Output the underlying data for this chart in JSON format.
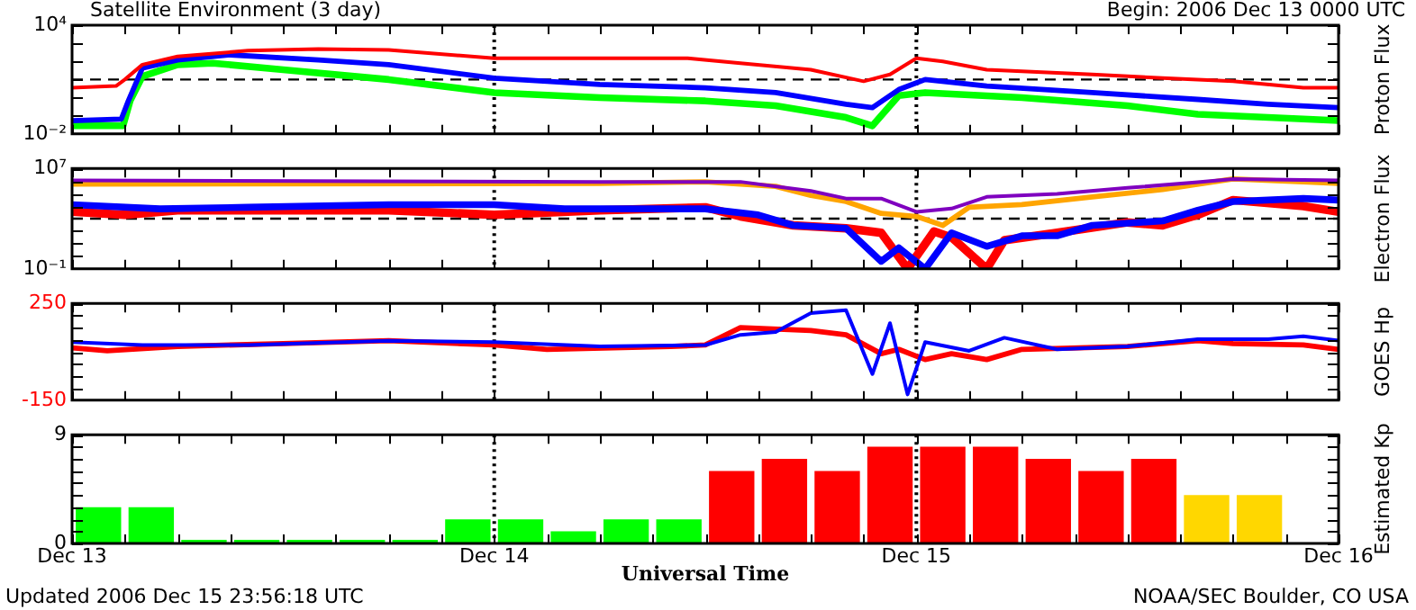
{
  "chart_data": [
    {
      "type": "line",
      "title": "Satellite Environment (3 day)",
      "subtitle": "Begin:  2006 Dec 13 0000 UTC",
      "ylabel": "Proton Flux",
      "log": "y",
      "grid": false,
      "legend": false,
      "tick_labels": "y",
      "marker": "none",
      "xlim": [
        "2006-12-13T00:00",
        "2006-12-16T00:00"
      ],
      "xticks": [
        {
          "value": "2006-12-13T00:00",
          "label": null
        },
        {
          "value": "2006-12-13T03:00",
          "label": null
        },
        {
          "value": "2006-12-13T06:00",
          "label": null
        },
        {
          "value": "2006-12-13T09:00",
          "label": null
        },
        {
          "value": "2006-12-13T12:00",
          "label": null
        },
        {
          "value": "2006-12-13T15:00",
          "label": null
        },
        {
          "value": "2006-12-13T18:00",
          "label": null
        },
        {
          "value": "2006-12-13T21:00",
          "label": null
        },
        {
          "value": "2006-12-14T00:00",
          "label": null
        },
        {
          "value": "2006-12-14T03:00",
          "label": null
        },
        {
          "value": "2006-12-14T06:00",
          "label": null
        },
        {
          "value": "2006-12-14T09:00",
          "label": null
        },
        {
          "value": "2006-12-14T12:00",
          "label": null
        },
        {
          "value": "2006-12-14T15:00",
          "label": null
        },
        {
          "value": "2006-12-14T18:00",
          "label": null
        },
        {
          "value": "2006-12-14T21:00",
          "label": null
        },
        {
          "value": "2006-12-15T00:00",
          "label": null
        },
        {
          "value": "2006-12-15T03:00",
          "label": null
        },
        {
          "value": "2006-12-15T06:00",
          "label": null
        },
        {
          "value": "2006-12-15T09:00",
          "label": null
        },
        {
          "value": "2006-12-15T12:00",
          "label": null
        },
        {
          "value": "2006-12-15T15:00",
          "label": null
        },
        {
          "value": "2006-12-15T18:00",
          "label": null
        },
        {
          "value": "2006-12-15T21:00",
          "label": null
        },
        {
          "value": "2006-12-16T00:00",
          "label": null
        }
      ],
      "ylim": [
        0.01,
        10000
      ],
      "yticks": [
        {
          "value": 0.01,
          "label": "10⁻²"
        },
        {
          "value": 0.1,
          "label": null
        },
        {
          "value": 1,
          "label": null
        },
        {
          "value": 10,
          "label": null
        },
        {
          "value": 100,
          "label": null
        },
        {
          "value": 1000,
          "label": null
        },
        {
          "value": 10000,
          "label": "10⁴"
        }
      ],
      "ref_lines": [
        {
          "axis": "y",
          "value": 10,
          "line_style": "dashed",
          "color": "#000000"
        },
        {
          "axis": "x",
          "value": "2006-12-14T00:00",
          "line_style": "dotted",
          "color": "#000000"
        },
        {
          "axis": "x",
          "value": "2006-12-15T00:00",
          "line_style": "dotted",
          "color": "#000000"
        }
      ],
      "series": [
        {
          "color": "#ff0000",
          "x": [
            "2006-12-13T00:00",
            "2006-12-13T02:30",
            "2006-12-13T03:00",
            "2006-12-13T04:00",
            "2006-12-13T06:00",
            "2006-12-13T10:00",
            "2006-12-13T14:00",
            "2006-12-13T18:00",
            "2006-12-14T00:00",
            "2006-12-14T06:00",
            "2006-12-14T11:00",
            "2006-12-14T14:00",
            "2006-12-14T18:00",
            "2006-12-14T21:00",
            "2006-12-14T22:30",
            "2006-12-15T00:00",
            "2006-12-15T01:30",
            "2006-12-15T04:00",
            "2006-12-15T10:00",
            "2006-12-15T14:00",
            "2006-12-15T18:00",
            "2006-12-15T22:00",
            "2006-12-16T00:00"
          ],
          "values": [
            3.5,
            4.4,
            10,
            66,
            190,
            390,
            480,
            430,
            150,
            150,
            150,
            80,
            35,
            8,
            19,
            150,
            100,
            35,
            19,
            12,
            8,
            3.5,
            3.5
          ]
        },
        {
          "color": "#0000ff",
          "x": [
            "2006-12-13T00:00",
            "2006-12-13T02:48",
            "2006-12-13T03:12",
            "2006-12-13T04:00",
            "2006-12-13T06:00",
            "2006-12-13T09:00",
            "2006-12-13T14:00",
            "2006-12-13T18:00",
            "2006-12-14T00:00",
            "2006-12-14T06:00",
            "2006-12-14T12:00",
            "2006-12-14T16:00",
            "2006-12-14T20:00",
            "2006-12-14T21:30",
            "2006-12-14T23:00",
            "2006-12-15T00:30",
            "2006-12-15T04:00",
            "2006-12-15T10:00",
            "2006-12-15T16:00",
            "2006-12-15T20:00",
            "2006-12-16T00:00"
          ],
          "values": [
            0.054,
            0.066,
            0.66,
            43,
            120,
            230,
            120,
            66,
            12,
            5.4,
            3.5,
            1.9,
            0.43,
            0.28,
            2.8,
            10,
            4.4,
            1.9,
            0.8,
            0.43,
            0.28
          ]
        },
        {
          "color": "#00ff00",
          "x": [
            "2006-12-13T00:00",
            "2006-12-13T02:54",
            "2006-12-13T03:18",
            "2006-12-13T04:00",
            "2006-12-13T06:00",
            "2006-12-13T08:00",
            "2006-12-13T12:00",
            "2006-12-13T18:00",
            "2006-12-14T00:00",
            "2006-12-14T06:00",
            "2006-12-14T12:00",
            "2006-12-14T16:00",
            "2006-12-14T20:00",
            "2006-12-14T21:30",
            "2006-12-14T23:00",
            "2006-12-15T00:30",
            "2006-12-15T06:00",
            "2006-12-15T12:00",
            "2006-12-15T16:00",
            "2006-12-16T00:00"
          ],
          "values": [
            0.028,
            0.028,
            0.66,
            15,
            66,
            80,
            35,
            10,
            1.9,
            1,
            0.66,
            0.36,
            0.08,
            0.028,
            1.3,
            1.9,
            1,
            0.36,
            0.12,
            0.054
          ]
        }
      ]
    },
    {
      "type": "line",
      "ylabel": "Electron Flux",
      "log": "y",
      "grid": false,
      "legend": false,
      "tick_labels": "y",
      "marker": "none",
      "xlim": [
        "2006-12-13T00:00",
        "2006-12-16T00:00"
      ],
      "xticks": [
        {
          "value": "2006-12-13T00:00",
          "label": null
        },
        {
          "value": "2006-12-13T03:00",
          "label": null
        },
        {
          "value": "2006-12-13T06:00",
          "label": null
        },
        {
          "value": "2006-12-13T09:00",
          "label": null
        },
        {
          "value": "2006-12-13T12:00",
          "label": null
        },
        {
          "value": "2006-12-13T15:00",
          "label": null
        },
        {
          "value": "2006-12-13T18:00",
          "label": null
        },
        {
          "value": "2006-12-13T21:00",
          "label": null
        },
        {
          "value": "2006-12-14T00:00",
          "label": null
        },
        {
          "value": "2006-12-14T03:00",
          "label": null
        },
        {
          "value": "2006-12-14T06:00",
          "label": null
        },
        {
          "value": "2006-12-14T09:00",
          "label": null
        },
        {
          "value": "2006-12-14T12:00",
          "label": null
        },
        {
          "value": "2006-12-14T15:00",
          "label": null
        },
        {
          "value": "2006-12-14T18:00",
          "label": null
        },
        {
          "value": "2006-12-14T21:00",
          "label": null
        },
        {
          "value": "2006-12-15T00:00",
          "label": null
        },
        {
          "value": "2006-12-15T03:00",
          "label": null
        },
        {
          "value": "2006-12-15T06:00",
          "label": null
        },
        {
          "value": "2006-12-15T09:00",
          "label": null
        },
        {
          "value": "2006-12-15T12:00",
          "label": null
        },
        {
          "value": "2006-12-15T15:00",
          "label": null
        },
        {
          "value": "2006-12-15T18:00",
          "label": null
        },
        {
          "value": "2006-12-15T21:00",
          "label": null
        },
        {
          "value": "2006-12-16T00:00",
          "label": null
        }
      ],
      "ylim": [
        0.1,
        10000000
      ],
      "yticks": [
        {
          "value": 0.1,
          "label": "10⁻¹"
        },
        {
          "value": 1,
          "label": null
        },
        {
          "value": 10,
          "label": null
        },
        {
          "value": 100,
          "label": null
        },
        {
          "value": 1000,
          "label": null
        },
        {
          "value": 10000,
          "label": null
        },
        {
          "value": 100000,
          "label": null
        },
        {
          "value": 1000000,
          "label": null
        },
        {
          "value": 10000000,
          "label": "10⁷"
        }
      ],
      "ref_lines": [
        {
          "axis": "y",
          "value": 1000,
          "line_style": "dashed",
          "color": "#000000"
        },
        {
          "axis": "x",
          "value": "2006-12-14T00:00",
          "line_style": "dotted",
          "color": "#000000"
        },
        {
          "axis": "x",
          "value": "2006-12-15T00:00",
          "line_style": "dotted",
          "color": "#000000"
        }
      ],
      "series": [
        {
          "color": "#7f00bf",
          "x": [
            "2006-12-13T00:00",
            "2006-12-14T06:00",
            "2006-12-14T14:00",
            "2006-12-14T18:00",
            "2006-12-14T20:00",
            "2006-12-14T22:00",
            "2006-12-15T00:00",
            "2006-12-15T02:00",
            "2006-12-15T04:00",
            "2006-12-15T08:00",
            "2006-12-15T12:00",
            "2006-12-15T16:00",
            "2006-12-15T18:00",
            "2006-12-16T00:00"
          ],
          "values": [
            1100000,
            850000,
            850000,
            160000,
            40000,
            40000,
            3500,
            6300,
            54000,
            93000,
            280000,
            800000,
            1450000,
            1100000
          ]
        },
        {
          "color": "#ffa500",
          "x": [
            "2006-12-13T00:00",
            "2006-12-14T06:00",
            "2006-12-14T12:00",
            "2006-12-14T16:00",
            "2006-12-14T18:00",
            "2006-12-14T20:00",
            "2006-12-14T22:00",
            "2006-12-15T00:00",
            "2006-12-15T01:30",
            "2006-12-15T03:00",
            "2006-12-15T06:00",
            "2006-12-15T10:00",
            "2006-12-15T14:00",
            "2006-12-15T18:00",
            "2006-12-15T22:00",
            "2006-12-16T00:00"
          ],
          "values": [
            560000,
            630000,
            850000,
            370000,
            70000,
            23000,
            2600,
            1500,
            290,
            8000,
            13000,
            54000,
            210000,
            1450000,
            850000,
            630000
          ]
        },
        {
          "color": "#0000ff",
          "x": [
            "2006-12-13T00:00",
            "2006-12-13T05:00",
            "2006-12-13T10:00",
            "2006-12-13T18:00",
            "2006-12-14T00:00",
            "2006-12-14T04:00",
            "2006-12-14T12:00",
            "2006-12-14T15:00",
            "2006-12-14T17:00",
            "2006-12-14T20:00",
            "2006-12-14T22:00",
            "2006-12-14T23:00",
            "2006-12-15T00:30",
            "2006-12-15T02:00",
            "2006-12-15T04:00",
            "2006-12-15T06:00",
            "2006-12-15T08:00",
            "2006-12-15T10:00",
            "2006-12-15T14:00",
            "2006-12-15T16:00",
            "2006-12-15T18:00",
            "2006-12-15T22:00",
            "2006-12-16T00:00"
          ],
          "values": [
            13000,
            6000,
            8000,
            13000,
            13000,
            6000,
            6000,
            2000,
            290,
            170,
            0.4,
            4.7,
            0.1,
            74,
            6.2,
            43,
            43,
            290,
            660,
            4600,
            23000,
            40000,
            30000
          ]
        },
        {
          "color": "#ff0000",
          "x": [
            "2006-12-13T00:00",
            "2006-12-13T03:00",
            "2006-12-13T06:00",
            "2006-12-13T18:00",
            "2006-12-14T00:00",
            "2006-12-14T06:00",
            "2006-12-14T12:00",
            "2006-12-14T14:00",
            "2006-12-14T17:00",
            "2006-12-14T20:00",
            "2006-12-14T22:00",
            "2006-12-14T23:30",
            "2006-12-15T01:00",
            "2006-12-15T02:00",
            "2006-12-15T04:00",
            "2006-12-15T05:00",
            "2006-12-15T08:00",
            "2006-12-15T12:00",
            "2006-12-15T14:00",
            "2006-12-15T16:00",
            "2006-12-15T18:00",
            "2006-12-15T22:00",
            "2006-12-16T00:00"
          ],
          "values": [
            3500,
            2000,
            4600,
            4600,
            2000,
            4600,
            8000,
            1500,
            290,
            170,
            74,
            0.1,
            95,
            32,
            0.1,
            19,
            74,
            500,
            290,
            2000,
            30000,
            10000,
            3500
          ]
        }
      ]
    },
    {
      "type": "line",
      "ylabel": "GOES Hp",
      "grid": false,
      "legend": false,
      "tick_labels": "y",
      "marker": "none",
      "xlim": [
        "2006-12-13T00:00",
        "2006-12-16T00:00"
      ],
      "xticks": [
        {
          "value": "2006-12-13T00:00",
          "label": null
        },
        {
          "value": "2006-12-13T03:00",
          "label": null
        },
        {
          "value": "2006-12-13T06:00",
          "label": null
        },
        {
          "value": "2006-12-13T09:00",
          "label": null
        },
        {
          "value": "2006-12-13T12:00",
          "label": null
        },
        {
          "value": "2006-12-13T15:00",
          "label": null
        },
        {
          "value": "2006-12-13T18:00",
          "label": null
        },
        {
          "value": "2006-12-13T21:00",
          "label": null
        },
        {
          "value": "2006-12-14T00:00",
          "label": null
        },
        {
          "value": "2006-12-14T03:00",
          "label": null
        },
        {
          "value": "2006-12-14T06:00",
          "label": null
        },
        {
          "value": "2006-12-14T09:00",
          "label": null
        },
        {
          "value": "2006-12-14T12:00",
          "label": null
        },
        {
          "value": "2006-12-14T15:00",
          "label": null
        },
        {
          "value": "2006-12-14T18:00",
          "label": null
        },
        {
          "value": "2006-12-14T21:00",
          "label": null
        },
        {
          "value": "2006-12-15T00:00",
          "label": null
        },
        {
          "value": "2006-12-15T03:00",
          "label": null
        },
        {
          "value": "2006-12-15T06:00",
          "label": null
        },
        {
          "value": "2006-12-15T09:00",
          "label": null
        },
        {
          "value": "2006-12-15T12:00",
          "label": null
        },
        {
          "value": "2006-12-15T15:00",
          "label": null
        },
        {
          "value": "2006-12-15T18:00",
          "label": null
        },
        {
          "value": "2006-12-15T21:00",
          "label": null
        },
        {
          "value": "2006-12-16T00:00",
          "label": null
        }
      ],
      "ylim": [
        -150,
        250
      ],
      "yticks": [
        -150,
        {
          "value": -100,
          "label": null
        },
        {
          "value": -50,
          "label": null
        },
        {
          "value": 0,
          "label": null
        },
        {
          "value": 50,
          "label": null
        },
        {
          "value": 100,
          "label": null
        },
        {
          "value": 150,
          "label": null
        },
        {
          "value": 200,
          "label": null
        },
        250
      ],
      "ref_lines": [
        {
          "axis": "x",
          "value": "2006-12-14T00:00",
          "line_style": "dotted",
          "color": "#000000"
        },
        {
          "axis": "x",
          "value": "2006-12-15T00:00",
          "line_style": "dotted",
          "color": "#000000"
        }
      ],
      "series": [
        {
          "color": "#0000ff",
          "x": [
            "2006-12-13T00:00",
            "2006-12-13T04:00",
            "2006-12-13T10:00",
            "2006-12-13T18:00",
            "2006-12-14T00:00",
            "2006-12-14T06:00",
            "2006-12-14T12:00",
            "2006-12-14T14:00",
            "2006-12-14T16:00",
            "2006-12-14T18:00",
            "2006-12-14T20:00",
            "2006-12-14T21:30",
            "2006-12-14T22:30",
            "2006-12-14T23:30",
            "2006-12-15T00:30",
            "2006-12-15T03:00",
            "2006-12-15T05:00",
            "2006-12-15T08:00",
            "2006-12-15T12:00",
            "2006-12-15T16:00",
            "2006-12-15T20:00",
            "2006-12-15T22:00",
            "2006-12-16T00:00"
          ],
          "values": [
            90,
            78,
            78,
            96,
            90,
            72,
            78,
            120,
            132,
            210,
            222,
            -42,
            168,
            -126,
            90,
            54,
            108,
            60,
            72,
            102,
            102,
            114,
            96
          ]
        },
        {
          "color": "#ff0000",
          "x": [
            "2006-12-13T00:00",
            "2006-12-13T02:00",
            "2006-12-13T06:00",
            "2006-12-13T12:00",
            "2006-12-13T18:00",
            "2006-12-14T00:00",
            "2006-12-14T03:00",
            "2006-12-14T10:00",
            "2006-12-14T12:00",
            "2006-12-14T14:00",
            "2006-12-14T18:00",
            "2006-12-14T20:00",
            "2006-12-14T22:00",
            "2006-12-14T23:00",
            "2006-12-15T00:30",
            "2006-12-15T02:00",
            "2006-12-15T04:00",
            "2006-12-15T06:00",
            "2006-12-15T12:00",
            "2006-12-15T16:00",
            "2006-12-15T18:00",
            "2006-12-15T22:00",
            "2006-12-16T00:00"
          ],
          "values": [
            66,
            54,
            72,
            84,
            96,
            78,
            60,
            72,
            78,
            150,
            138,
            120,
            42,
            60,
            18,
            42,
            18,
            60,
            72,
            96,
            84,
            78,
            60
          ]
        }
      ]
    },
    {
      "type": "bar",
      "xlabel": "Universal Time",
      "ylabel": "Estimated Kp",
      "grid": false,
      "legend": false,
      "annotations": [
        "Updated 2006 Dec 15 23:56:18 UTC",
        "NOAA/SEC Boulder, CO USA"
      ],
      "xlim": [
        "2006-12-13T00:00",
        "2006-12-16T00:00"
      ],
      "xticks": [
        {
          "value": "2006-12-13T00:00",
          "label": "Dec 13"
        },
        {
          "value": "2006-12-13T03:00",
          "label": null
        },
        {
          "value": "2006-12-13T06:00",
          "label": null
        },
        {
          "value": "2006-12-13T09:00",
          "label": null
        },
        {
          "value": "2006-12-13T12:00",
          "label": null
        },
        {
          "value": "2006-12-13T15:00",
          "label": null
        },
        {
          "value": "2006-12-13T18:00",
          "label": null
        },
        {
          "value": "2006-12-13T21:00",
          "label": null
        },
        {
          "value": "2006-12-14T00:00",
          "label": "Dec 14"
        },
        {
          "value": "2006-12-14T03:00",
          "label": null
        },
        {
          "value": "2006-12-14T06:00",
          "label": null
        },
        {
          "value": "2006-12-14T09:00",
          "label": null
        },
        {
          "value": "2006-12-14T12:00",
          "label": null
        },
        {
          "value": "2006-12-14T15:00",
          "label": null
        },
        {
          "value": "2006-12-14T18:00",
          "label": null
        },
        {
          "value": "2006-12-14T21:00",
          "label": null
        },
        {
          "value": "2006-12-15T00:00",
          "label": "Dec 15"
        },
        {
          "value": "2006-12-15T03:00",
          "label": null
        },
        {
          "value": "2006-12-15T06:00",
          "label": null
        },
        {
          "value": "2006-12-15T09:00",
          "label": null
        },
        {
          "value": "2006-12-15T12:00",
          "label": null
        },
        {
          "value": "2006-12-15T15:00",
          "label": null
        },
        {
          "value": "2006-12-15T18:00",
          "label": null
        },
        {
          "value": "2006-12-15T21:00",
          "label": null
        },
        {
          "value": "2006-12-16T00:00",
          "label": "Dec 16"
        }
      ],
      "ylim": [
        0,
        9
      ],
      "yticks": [
        0,
        {
          "value": 1,
          "label": null
        },
        {
          "value": 2,
          "label": null
        },
        {
          "value": 3,
          "label": null
        },
        {
          "value": 4,
          "label": null
        },
        {
          "value": 5,
          "label": null
        },
        {
          "value": 6,
          "label": null
        },
        {
          "value": 7,
          "label": null
        },
        {
          "value": 8,
          "label": null
        },
        9
      ],
      "ref_lines": [
        {
          "axis": "x",
          "value": "2006-12-14T00:00",
          "line_style": "dotted",
          "color": "#000000"
        },
        {
          "axis": "x",
          "value": "2006-12-15T00:00",
          "line_style": "dotted",
          "color": "#000000"
        }
      ],
      "x": [
        "2006-12-13T01:30",
        "2006-12-13T04:30",
        "2006-12-13T07:30",
        "2006-12-13T10:30",
        "2006-12-13T13:30",
        "2006-12-13T16:30",
        "2006-12-13T19:30",
        "2006-12-13T22:30",
        "2006-12-14T01:30",
        "2006-12-14T04:30",
        "2006-12-14T07:30",
        "2006-12-14T10:30",
        "2006-12-14T13:30",
        "2006-12-14T16:30",
        "2006-12-14T19:30",
        "2006-12-14T22:30",
        "2006-12-15T01:30",
        "2006-12-15T04:30",
        "2006-12-15T07:30",
        "2006-12-15T10:30",
        "2006-12-15T13:30",
        "2006-12-15T16:30",
        "2006-12-15T19:30"
      ],
      "values": [
        3,
        3,
        0.3,
        0.3,
        0.3,
        0.3,
        0.3,
        2,
        2,
        1,
        2,
        2,
        6,
        7,
        6,
        8,
        8,
        8,
        7,
        6,
        7,
        4,
        4
      ],
      "colors": [
        "#00ff00",
        "#00ff00",
        "#00ff00",
        "#00ff00",
        "#00ff00",
        "#00ff00",
        "#00ff00",
        "#00ff00",
        "#00ff00",
        "#00ff00",
        "#00ff00",
        "#00ff00",
        "#ff0000",
        "#ff0000",
        "#ff0000",
        "#ff0000",
        "#ff0000",
        "#ff0000",
        "#ff0000",
        "#ff0000",
        "#ff0000",
        "#ffd700",
        "#ffd700"
      ]
    }
  ]
}
